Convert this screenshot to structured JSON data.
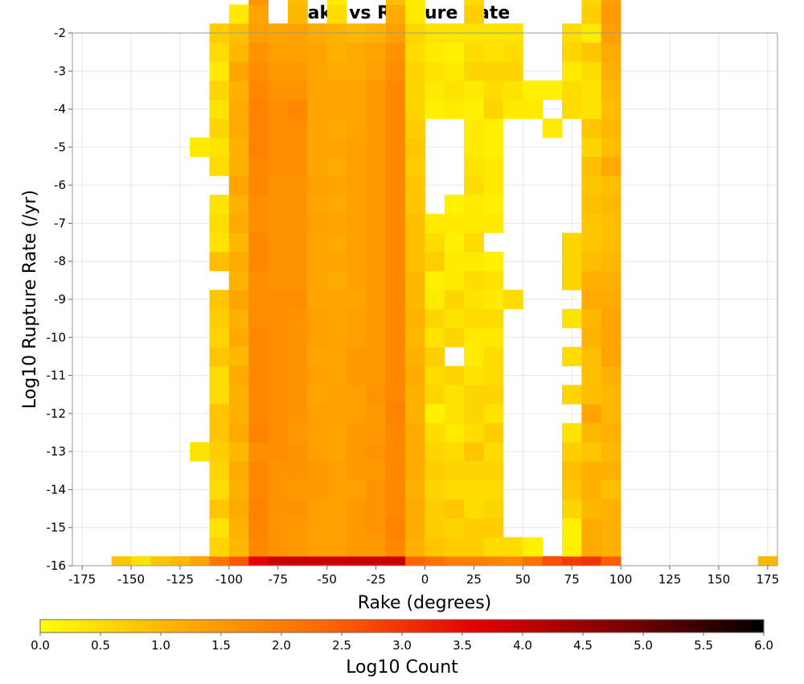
{
  "chart_data": {
    "type": "heatmap",
    "title": "Rake vs Rupture Rate",
    "xlabel": "Rake (degrees)",
    "ylabel": "Log10 Rupture Rate (/yr)",
    "xlim": [
      -180,
      180
    ],
    "ylim": [
      -16,
      -2
    ],
    "xticks": [
      -175,
      -150,
      -125,
      -100,
      -75,
      -50,
      -25,
      0,
      25,
      50,
      75,
      100,
      125,
      150,
      175
    ],
    "yticks": [
      -2,
      -3,
      -4,
      -5,
      -6,
      -7,
      -8,
      -9,
      -10,
      -11,
      -12,
      -13,
      -14,
      -15,
      -16
    ],
    "grid": true,
    "colorbar": {
      "label": "Log10 Count",
      "range": [
        0,
        6
      ],
      "ticks": [
        "0.0",
        "0.5",
        "1.0",
        "1.5",
        "2.0",
        "2.5",
        "3.0",
        "3.5",
        "4.0",
        "4.5",
        "5.0",
        "5.5",
        "6.0"
      ],
      "colors": [
        "#ffff00",
        "#ffaa00",
        "#ff6600",
        "#e60000",
        "#800000",
        "#000000"
      ]
    },
    "cell_size": {
      "rake": 10,
      "log_rate": 0.5
    },
    "columns": [
      {
        "rake": -155,
        "y_min": -16,
        "cells": [
          0.8
        ]
      },
      {
        "rake": -145,
        "y_min": -16,
        "cells": [
          0.4
        ]
      },
      {
        "rake": -135,
        "y_min": -16,
        "cells": [
          0.8
        ]
      },
      {
        "rake": -125,
        "y_min": -16,
        "cells": [
          1.0
        ]
      },
      {
        "rake": -115,
        "y_min": -16,
        "cells": [
          1.3,
          0,
          0,
          0,
          0,
          0,
          0.4,
          0,
          0,
          0,
          0,
          0,
          0,
          0,
          0,
          0,
          0,
          0,
          0,
          0,
          0,
          0,
          0.3
        ]
      },
      {
        "rake": -105,
        "y_min": -16,
        "cells": [
          2.1,
          0.6,
          0.4,
          0.8,
          0.5,
          0.6,
          0.7,
          0.8,
          0.8,
          0.5,
          0.5,
          0.8,
          0.6,
          0.7,
          0.8,
          0,
          0.9,
          0.4,
          0.5,
          0.4,
          0,
          0.5,
          0.4,
          0.6,
          0.4,
          0.6,
          0.3,
          0.5,
          0.7
        ]
      },
      {
        "rake": -95,
        "y_min": -16,
        "cells": [
          2.6,
          1.0,
          1.1,
          1.2,
          1.1,
          1.2,
          1.0,
          1.2,
          1.1,
          1.1,
          1.2,
          1.0,
          1.2,
          1.1,
          1.3,
          1.1,
          1.2,
          1.0,
          1.2,
          1.1,
          1.3,
          1.1,
          1.1,
          1.2,
          1.2,
          1.1,
          1.3,
          1.0,
          0.9,
          0.3
        ]
      },
      {
        "rake": -85,
        "y_min": -16,
        "cells": [
          3.6,
          1.8,
          1.9,
          1.9,
          1.8,
          1.8,
          1.7,
          1.9,
          1.8,
          1.8,
          1.8,
          1.8,
          1.8,
          1.7,
          1.7,
          1.7,
          1.8,
          1.8,
          1.7,
          1.7,
          1.8,
          1.8,
          1.9,
          1.9,
          1.9,
          1.8,
          1.7,
          1.6,
          1.4,
          1.3,
          1.6,
          0.6,
          0.2
        ]
      },
      {
        "rake": -75,
        "y_min": -16,
        "cells": [
          3.9,
          1.6,
          1.6,
          1.6,
          1.6,
          1.6,
          1.7,
          1.7,
          1.7,
          1.7,
          1.7,
          1.7,
          1.7,
          1.7,
          1.7,
          1.6,
          1.6,
          1.6,
          1.6,
          1.6,
          1.6,
          1.7,
          1.7,
          1.7,
          1.7,
          1.6,
          1.5,
          1.4,
          1.3
        ]
      },
      {
        "rake": -65,
        "y_min": -16,
        "cells": [
          3.9,
          1.5,
          1.5,
          1.6,
          1.5,
          1.6,
          1.6,
          1.5,
          1.6,
          1.6,
          1.6,
          1.6,
          1.6,
          1.6,
          1.7,
          1.6,
          1.6,
          1.6,
          1.6,
          1.6,
          1.6,
          1.7,
          1.7,
          1.7,
          1.8,
          1.6,
          1.5,
          1.4,
          1.4,
          1.0,
          0.9
        ]
      },
      {
        "rake": -55,
        "y_min": -16,
        "cells": [
          3.9,
          1.4,
          1.4,
          1.4,
          1.5,
          1.5,
          1.4,
          1.4,
          1.4,
          1.3,
          1.4,
          1.3,
          1.4,
          1.4,
          1.3,
          1.3,
          1.3,
          1.3,
          1.4,
          1.3,
          1.4,
          1.3,
          1.3,
          1.3,
          1.3,
          1.3,
          1.3,
          1.3,
          1.2
        ]
      },
      {
        "rake": -45,
        "y_min": -16,
        "cells": [
          3.9,
          1.4,
          1.4,
          1.4,
          1.4,
          1.4,
          1.3,
          1.3,
          1.4,
          1.4,
          1.3,
          1.3,
          1.3,
          1.3,
          1.3,
          1.2,
          1.3,
          1.2,
          1.3,
          1.2,
          1.3,
          1.2,
          1.3,
          1.2,
          1.3,
          1.3,
          1.2,
          1.1,
          1.1,
          0.5,
          0.3
        ]
      },
      {
        "rake": -35,
        "y_min": -16,
        "cells": [
          3.9,
          1.5,
          1.5,
          1.5,
          1.4,
          1.5,
          1.5,
          1.5,
          1.4,
          1.4,
          1.5,
          1.5,
          1.4,
          1.4,
          1.3,
          1.4,
          1.4,
          1.4,
          1.4,
          1.4,
          1.4,
          1.4,
          1.4,
          1.3,
          1.3,
          1.3,
          1.2,
          1.2,
          1.0
        ]
      },
      {
        "rake": -25,
        "y_min": -16,
        "cells": [
          3.9,
          1.5,
          1.6,
          1.6,
          1.6,
          1.5,
          1.6,
          1.5,
          1.5,
          1.6,
          1.5,
          1.5,
          1.5,
          1.5,
          1.5,
          1.5,
          1.5,
          1.5,
          1.5,
          1.5,
          1.5,
          1.5,
          1.5,
          1.5,
          1.5,
          1.5,
          1.4,
          1.3,
          1.1
        ]
      },
      {
        "rake": -15,
        "y_min": -16,
        "cells": [
          3.9,
          1.8,
          1.9,
          1.8,
          1.8,
          1.8,
          1.8,
          1.8,
          1.9,
          1.8,
          1.8,
          1.8,
          1.8,
          1.8,
          1.8,
          1.8,
          1.8,
          1.8,
          1.8,
          1.8,
          1.8,
          1.8,
          1.8,
          1.8,
          1.8,
          1.8,
          1.7,
          1.6,
          1.4,
          1.2,
          0.9,
          0.5
        ]
      },
      {
        "rake": -5,
        "y_min": -16,
        "cells": [
          2.4,
          1.1,
          1.2,
          1.2,
          1.1,
          1.2,
          1.2,
          1.2,
          1.1,
          1.1,
          1.2,
          1.1,
          1.0,
          1.1,
          1.0,
          1.0,
          0.9,
          0.9,
          0.9,
          0.8,
          0.8,
          0.7,
          0.8,
          0.7,
          0.6,
          0.6,
          0.6,
          0.5,
          0.6,
          0.3,
          0.3,
          0.2
        ]
      },
      {
        "rake": 5,
        "y_min": -16,
        "cells": [
          2.2,
          0.8,
          0.7,
          0.7,
          0.6,
          0.7,
          0.6,
          0.5,
          0.2,
          0.6,
          0.5,
          0.7,
          0.4,
          0.6,
          0.3,
          0.2,
          0.7,
          0.5,
          0.3,
          0,
          0,
          0,
          0,
          0,
          0.2,
          0.3,
          0.4,
          0.3,
          0.4
        ]
      },
      {
        "rake": 15,
        "y_min": -16,
        "cells": [
          2.0,
          0.7,
          0.6,
          0.8,
          0.5,
          0.6,
          0.5,
          0.3,
          0.4,
          0.4,
          0.6,
          0,
          0.6,
          0.4,
          0.6,
          0.3,
          0.3,
          0.2,
          0.3,
          0.2,
          0,
          0,
          0,
          0,
          0.3,
          0.4,
          0.3,
          0.2,
          0.4
        ]
      },
      {
        "rake": 25,
        "y_min": -16,
        "cells": [
          2.0,
          0.7,
          0.7,
          0.5,
          0.5,
          0.6,
          0.8,
          0.5,
          0.6,
          0.6,
          0.4,
          0.3,
          0.3,
          0.5,
          0.4,
          0.5,
          0.3,
          0.5,
          0.3,
          0.3,
          0.5,
          0.4,
          0.3,
          0.3,
          0.2,
          0.3,
          0.6,
          0.5,
          0.4,
          0.7,
          0.5
        ]
      },
      {
        "rake": 35,
        "y_min": -16,
        "cells": [
          1.9,
          0.5,
          0.7,
          0.6,
          0.5,
          0.6,
          0.5,
          0.7,
          0.4,
          0.6,
          0.5,
          0.5,
          0.3,
          0.5,
          0.3,
          0.4,
          0.2,
          0,
          0.3,
          0.2,
          0.3,
          0.3,
          0.2,
          0.2,
          0.6,
          0.5,
          0.6,
          0.4,
          0.4
        ]
      },
      {
        "rake": 45,
        "y_min": -16,
        "cells": [
          1.8,
          0.5,
          0,
          0,
          0,
          0,
          0,
          0,
          0,
          0,
          0,
          0,
          0,
          0,
          0.5,
          0,
          0,
          0,
          0,
          0,
          0,
          0,
          0,
          0,
          0.3,
          0.4,
          0.6,
          0.5,
          0.4,
          0,
          0,
          0.3
        ]
      },
      {
        "rake": 55,
        "y_min": -16,
        "cells": [
          2.2,
          0.2,
          0,
          0,
          0,
          0,
          0,
          0,
          0,
          0,
          0,
          0,
          0,
          0,
          0,
          0,
          0,
          0,
          0,
          0,
          0,
          0,
          0,
          0,
          0.3,
          0.2
        ]
      },
      {
        "rake": 65,
        "y_min": -16,
        "cells": [
          2.7,
          0,
          0,
          0,
          0,
          0,
          0,
          0,
          0,
          0,
          0,
          0,
          0,
          0,
          0,
          0,
          0,
          0,
          0,
          0,
          0,
          0,
          0,
          0.3,
          0,
          0.2,
          0,
          0,
          0,
          0,
          0,
          0.3
        ]
      },
      {
        "rake": 75,
        "y_min": -16,
        "cells": [
          2.9,
          0.2,
          0.2,
          0.6,
          0.8,
          0.9,
          0.7,
          0.4,
          0,
          0.6,
          0,
          0.5,
          0,
          0.4,
          0,
          0.6,
          0.6,
          0.6,
          0,
          0,
          0,
          0,
          0,
          0,
          0.5,
          0.5,
          0.3,
          0.6,
          0.5,
          0,
          0,
          0.3
        ]
      },
      {
        "rake": 85,
        "y_min": -16,
        "cells": [
          3.0,
          1.2,
          1.2,
          1.0,
          1.1,
          1.1,
          0.8,
          1.0,
          1.3,
          0.9,
          0.9,
          0.9,
          1.1,
          1.0,
          1.2,
          1.1,
          0.9,
          0.8,
          0.8,
          0.9,
          0.8,
          0.9,
          0.6,
          0.8,
          0.4,
          0.4,
          0.5,
          0.8,
          0.3,
          0.7,
          0.6,
          0.8,
          0.4
        ]
      },
      {
        "rake": 95,
        "y_min": -16,
        "cells": [
          2.5,
          1.1,
          1.1,
          1.1,
          0.9,
          1.1,
          1.0,
          1.1,
          1.0,
          1.0,
          1.1,
          1.3,
          1.3,
          1.3,
          1.2,
          1.1,
          1.0,
          0.9,
          0.9,
          1.0,
          0.9,
          1.2,
          0.9,
          1.0,
          0.9,
          1.0,
          1.1,
          1.2,
          1.4,
          1.5,
          1.4,
          1.0,
          0.7
        ]
      },
      {
        "rake": 175,
        "y_min": -16,
        "cells": [
          1.0
        ]
      }
    ]
  }
}
